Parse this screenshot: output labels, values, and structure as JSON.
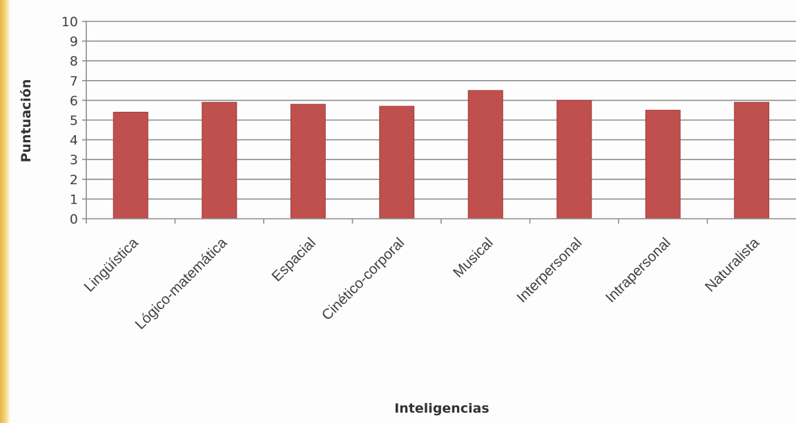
{
  "chart_data": {
    "type": "bar",
    "title": "",
    "xlabel": "Inteligencias",
    "ylabel": "Puntuación",
    "ylim": [
      0,
      10
    ],
    "yticks": [
      0,
      1,
      2,
      3,
      4,
      5,
      6,
      7,
      8,
      9,
      10
    ],
    "grid": true,
    "legend": "none",
    "bar_color": "#c0504d",
    "categories": [
      "Lingüística",
      "Lógico-matemática",
      "Espacial",
      "Cinético-corporal",
      "Musical",
      "Interpersonal",
      "Intrapersonal",
      "Naturalista"
    ],
    "values": [
      5.4,
      5.9,
      5.8,
      5.7,
      6.5,
      6.0,
      5.5,
      5.9
    ]
  }
}
